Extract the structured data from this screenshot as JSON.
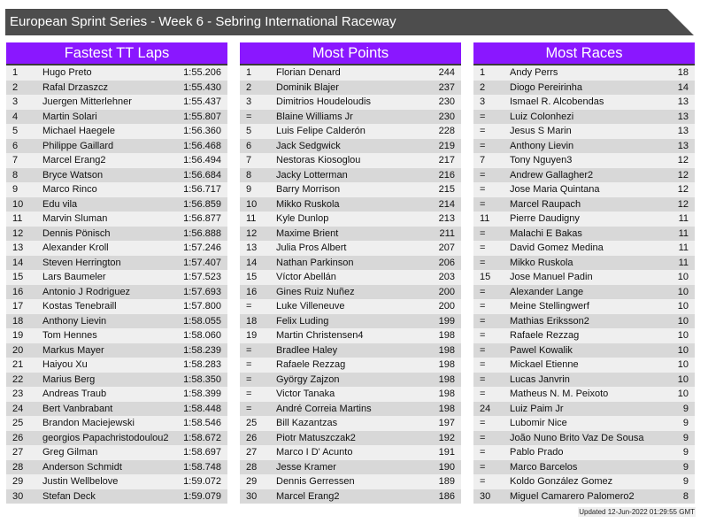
{
  "title": "European Sprint Series - Week 6 - Sebring International Raceway",
  "colors": {
    "header": "#8a17ff",
    "title_bar": "#4d4d4d"
  },
  "panels": [
    {
      "title": "Fastest TT Laps",
      "rows": [
        [
          "1",
          "Hugo Preto",
          "1:55.206"
        ],
        [
          "2",
          "Rafal Drzaszcz",
          "1:55.430"
        ],
        [
          "3",
          "Juergen Mitterlehner",
          "1:55.437"
        ],
        [
          "4",
          "Martin Solari",
          "1:55.807"
        ],
        [
          "5",
          "Michael Haegele",
          "1:56.360"
        ],
        [
          "6",
          "Philippe Gaillard",
          "1:56.468"
        ],
        [
          "7",
          "Marcel Erang2",
          "1:56.494"
        ],
        [
          "8",
          "Bryce Watson",
          "1:56.684"
        ],
        [
          "9",
          "Marco Rinco",
          "1:56.717"
        ],
        [
          "10",
          "Edu vila",
          "1:56.859"
        ],
        [
          "11",
          "Marvin Sluman",
          "1:56.877"
        ],
        [
          "12",
          "Dennis Pönisch",
          "1:56.888"
        ],
        [
          "13",
          "Alexander Kroll",
          "1:57.246"
        ],
        [
          "14",
          "Steven Herrington",
          "1:57.407"
        ],
        [
          "15",
          "Lars Baumeler",
          "1:57.523"
        ],
        [
          "16",
          "Antonio J Rodriguez",
          "1:57.693"
        ],
        [
          "17",
          "Kostas Tenebraill",
          "1:57.800"
        ],
        [
          "18",
          "Anthony Lievin",
          "1:58.055"
        ],
        [
          "19",
          "Tom Hennes",
          "1:58.060"
        ],
        [
          "20",
          "Markus Mayer",
          "1:58.239"
        ],
        [
          "21",
          "Haiyou Xu",
          "1:58.283"
        ],
        [
          "22",
          "Marius Berg",
          "1:58.350"
        ],
        [
          "23",
          "Andreas Traub",
          "1:58.399"
        ],
        [
          "24",
          "Bert Vanbrabant",
          "1:58.448"
        ],
        [
          "25",
          "Brandon Maciejewski",
          "1:58.546"
        ],
        [
          "26",
          "georgios Papachristodoulou2",
          "1:58.672"
        ],
        [
          "27",
          "Greg Gilman",
          "1:58.697"
        ],
        [
          "28",
          "Anderson Schmidt",
          "1:58.748"
        ],
        [
          "29",
          "Justin Wellbelove",
          "1:59.072"
        ],
        [
          "30",
          "Stefan Deck",
          "1:59.079"
        ]
      ]
    },
    {
      "title": "Most Points",
      "rows": [
        [
          "1",
          "Florian Denard",
          "244"
        ],
        [
          "2",
          "Dominik Blajer",
          "237"
        ],
        [
          "3",
          "Dimitrios Houdeloudis",
          "230"
        ],
        [
          "=",
          "Blaine Williams Jr",
          "230"
        ],
        [
          "5",
          "Luis Felipe Calderón",
          "228"
        ],
        [
          "6",
          "Jack Sedgwick",
          "219"
        ],
        [
          "7",
          "Nestoras Kiosoglou",
          "217"
        ],
        [
          "8",
          "Jacky Lotterman",
          "216"
        ],
        [
          "9",
          "Barry Morrison",
          "215"
        ],
        [
          "10",
          "Mikko Ruskola",
          "214"
        ],
        [
          "11",
          "Kyle Dunlop",
          "213"
        ],
        [
          "12",
          "Maxime Brient",
          "211"
        ],
        [
          "13",
          "Julia Pros Albert",
          "207"
        ],
        [
          "14",
          "Nathan Parkinson",
          "206"
        ],
        [
          "15",
          "Víctor Abellán",
          "203"
        ],
        [
          "16",
          "Gines Ruiz Nuñez",
          "200"
        ],
        [
          "=",
          "Luke Villeneuve",
          "200"
        ],
        [
          "18",
          "Felix Luding",
          "199"
        ],
        [
          "19",
          "Martin Christensen4",
          "198"
        ],
        [
          "=",
          "Bradlee Haley",
          "198"
        ],
        [
          "=",
          "Rafaele Rezzag",
          "198"
        ],
        [
          "=",
          "György Zajzon",
          "198"
        ],
        [
          "=",
          "Victor Tanaka",
          "198"
        ],
        [
          "=",
          "André Correia Martins",
          "198"
        ],
        [
          "25",
          "Bill Kazantzas",
          "197"
        ],
        [
          "26",
          "Piotr Matuszczak2",
          "192"
        ],
        [
          "27",
          "Marco I D' Acunto",
          "191"
        ],
        [
          "28",
          "Jesse Kramer",
          "190"
        ],
        [
          "29",
          "Dennis Gerressen",
          "189"
        ],
        [
          "30",
          "Marcel Erang2",
          "186"
        ]
      ]
    },
    {
      "title": "Most Races",
      "rows": [
        [
          "1",
          "Andy Perrs",
          "18"
        ],
        [
          "2",
          "Diogo Pereirinha",
          "14"
        ],
        [
          "3",
          "Ismael R. Alcobendas",
          "13"
        ],
        [
          "=",
          "Luiz Colonhezi",
          "13"
        ],
        [
          "=",
          "Jesus S Marin",
          "13"
        ],
        [
          "=",
          "Anthony Lievin",
          "13"
        ],
        [
          "7",
          "Tony Nguyen3",
          "12"
        ],
        [
          "=",
          "Andrew Gallagher2",
          "12"
        ],
        [
          "=",
          "Jose Maria Quintana",
          "12"
        ],
        [
          "=",
          "Marcel Raupach",
          "12"
        ],
        [
          "11",
          "Pierre Daudigny",
          "11"
        ],
        [
          "=",
          "Malachi E Bakas",
          "11"
        ],
        [
          "=",
          "David Gomez Medina",
          "11"
        ],
        [
          "=",
          "Mikko Ruskola",
          "11"
        ],
        [
          "15",
          "Jose Manuel Padin",
          "10"
        ],
        [
          "=",
          "Alexander Lange",
          "10"
        ],
        [
          "=",
          "Meine Stellingwerf",
          "10"
        ],
        [
          "=",
          "Mathias Eriksson2",
          "10"
        ],
        [
          "=",
          "Rafaele Rezzag",
          "10"
        ],
        [
          "=",
          "Pawel Kowalik",
          "10"
        ],
        [
          "=",
          "Mickael Etienne",
          "10"
        ],
        [
          "=",
          "Lucas Janvrin",
          "10"
        ],
        [
          "=",
          "Matheus N. M. Peixoto",
          "10"
        ],
        [
          "24",
          "Luiz Paim Jr",
          "9"
        ],
        [
          "=",
          "Lubomir Nice",
          "9"
        ],
        [
          "=",
          "João Nuno Brito Vaz De Sousa",
          "9"
        ],
        [
          "=",
          "Pablo Prado",
          "9"
        ],
        [
          "=",
          "Marco Barcelos",
          "9"
        ],
        [
          "=",
          "Koldo González Gomez",
          "9"
        ],
        [
          "30",
          "Miguel Camarero Palomero2",
          "8"
        ]
      ]
    }
  ],
  "footer": "Updated 12-Jun-2022 01:29:55 GMT"
}
